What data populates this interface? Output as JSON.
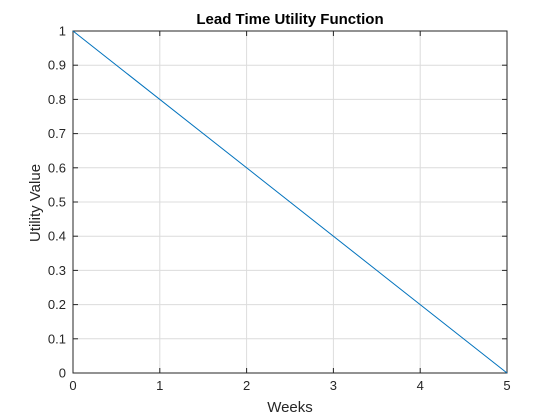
{
  "chart_data": {
    "type": "line",
    "title": "Lead Time Utility Function",
    "xlabel": "Weeks",
    "ylabel": "Utility Value",
    "xlim": [
      0,
      5
    ],
    "ylim": [
      0,
      1
    ],
    "xticks": [
      0,
      1,
      2,
      3,
      4,
      5
    ],
    "xtick_labels": [
      "0",
      "1",
      "2",
      "3",
      "4",
      "5"
    ],
    "yticks": [
      0,
      0.1,
      0.2,
      0.3,
      0.4,
      0.5,
      0.6,
      0.7,
      0.8,
      0.9,
      1
    ],
    "ytick_labels": [
      "0",
      "0.1",
      "0.2",
      "0.3",
      "0.4",
      "0.5",
      "0.6",
      "0.7",
      "0.8",
      "0.9",
      "1"
    ],
    "grid": true,
    "series": [
      {
        "x": [
          0,
          5
        ],
        "y": [
          1,
          0
        ],
        "color": "#0072bd"
      }
    ]
  }
}
